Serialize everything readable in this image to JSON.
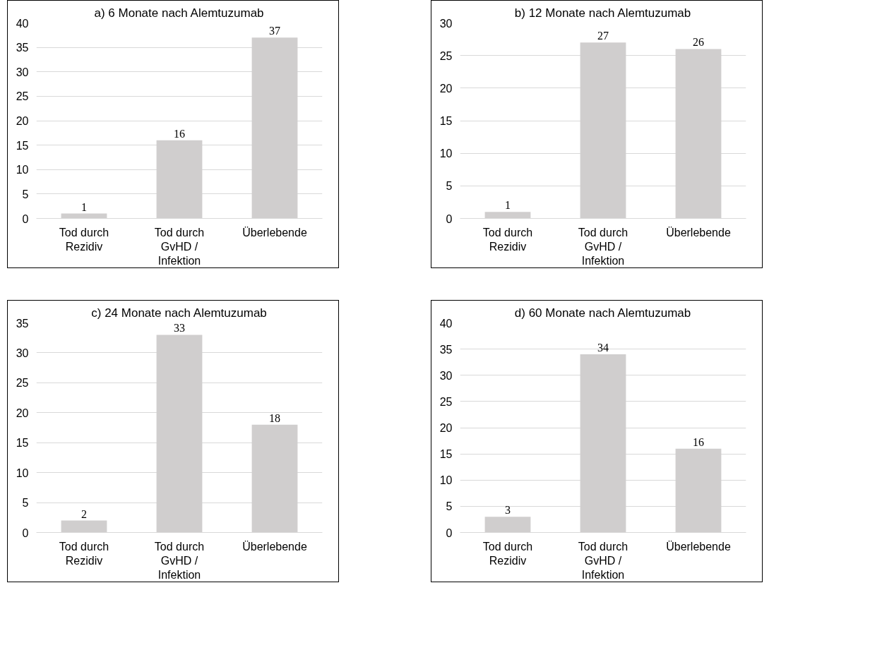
{
  "chart_data": [
    {
      "type": "bar",
      "title": "a) 6 Monate nach Alemtuzumab",
      "categories": [
        "Tod durch Rezidiv",
        "Tod durch GvHD / Infektion",
        "Überlebende"
      ],
      "values": [
        1,
        16,
        37
      ],
      "color": "#d0cece",
      "ylim": [
        0,
        40
      ],
      "yticks": [
        0,
        5,
        10,
        15,
        20,
        25,
        30,
        35,
        40
      ],
      "grid": "y",
      "data_labels": true
    },
    {
      "type": "bar",
      "title": "b) 12 Monate nach Alemtuzumab",
      "categories": [
        "Tod durch Rezidiv",
        "Tod durch GvHD / Infektion",
        "Überlebende"
      ],
      "values": [
        1,
        27,
        26
      ],
      "color": "#d0cece",
      "ylim": [
        0,
        30
      ],
      "yticks": [
        0,
        5,
        10,
        15,
        20,
        25,
        30
      ],
      "grid": "y",
      "data_labels": true
    },
    {
      "type": "bar",
      "title": "c) 24 Monate nach Alemtuzumab",
      "categories": [
        "Tod durch Rezidiv",
        "Tod durch GvHD / Infektion",
        "Überlebende"
      ],
      "values": [
        2,
        33,
        18
      ],
      "color": "#d0cece",
      "ylim": [
        0,
        35
      ],
      "yticks": [
        0,
        5,
        10,
        15,
        20,
        25,
        30,
        35
      ],
      "grid": "y",
      "data_labels": true
    },
    {
      "type": "bar",
      "title": "d) 60 Monate nach Alemtuzumab",
      "categories": [
        "Tod durch Rezidiv",
        "Tod durch GvHD / Infektion",
        "Überlebende"
      ],
      "values": [
        3,
        34,
        16
      ],
      "color": "#d0cece",
      "ylim": [
        0,
        40
      ],
      "yticks": [
        0,
        5,
        10,
        15,
        20,
        25,
        30,
        35,
        40
      ],
      "grid": "y",
      "data_labels": true
    }
  ]
}
